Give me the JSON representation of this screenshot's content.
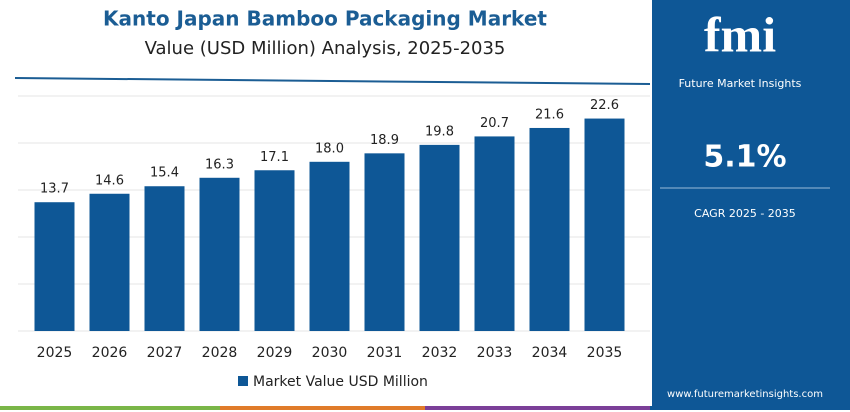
{
  "chart_data": {
    "type": "bar",
    "title": "Kanto Japan Bamboo Packaging Market",
    "subtitle": "Value (USD Million) Analysis, 2025-2035",
    "categories": [
      "2025",
      "2026",
      "2027",
      "2028",
      "2029",
      "2030",
      "2031",
      "2032",
      "2033",
      "2034",
      "2035"
    ],
    "series": [
      {
        "name": "Market Value USD Million",
        "color": "#0e5796",
        "values": [
          13.7,
          14.6,
          15.4,
          16.3,
          17.1,
          18.0,
          18.9,
          19.8,
          20.7,
          21.6,
          22.6
        ],
        "value_labels": [
          "13.7",
          "14.6",
          "15.4",
          "16.3",
          "17.1",
          "18.0",
          "18.9",
          "19.8",
          "20.7",
          "21.6",
          "22.6"
        ]
      }
    ],
    "ylim": [
      0,
      25
    ],
    "yticks": [
      0,
      5,
      10,
      15,
      20,
      25
    ],
    "grid": true
  },
  "sidebar": {
    "logo": "fmi",
    "brand": "Future Market Insights",
    "cagr": "5.1%",
    "cagr_label": "CAGR 2025 - 2035",
    "website": "www.futuremarketinsights.com"
  }
}
